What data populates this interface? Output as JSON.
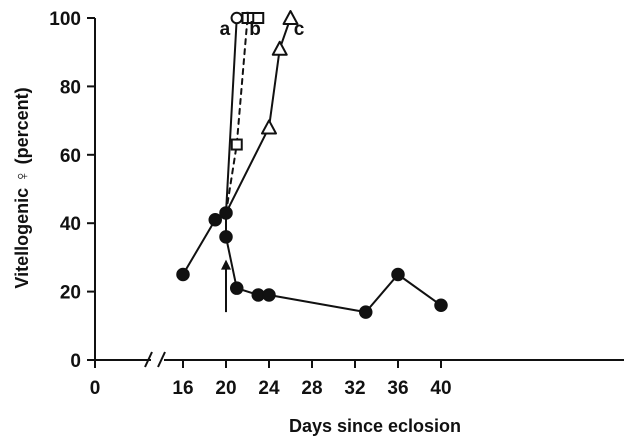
{
  "chart_data": {
    "type": "line",
    "title": "",
    "xlabel": "Days since eclosion",
    "ylabel": "Vitellogenic ♀ (percent)",
    "x_ticks": [
      0,
      16,
      20,
      24,
      28,
      32,
      36,
      40
    ],
    "y_ticks": [
      0,
      20,
      40,
      60,
      80,
      100
    ],
    "xlim": [
      0,
      41
    ],
    "ylim": [
      0,
      100
    ],
    "x_axis_break": true,
    "grid": false,
    "legend": "none",
    "arrow_annotation": {
      "x": 20,
      "y_from": 14,
      "y_to": 27
    },
    "series": [
      {
        "name": "",
        "marker": "filled-circle",
        "line_style": "solid",
        "points": [
          {
            "x": 16,
            "y": 25
          },
          {
            "x": 19,
            "y": 41
          },
          {
            "x": 20,
            "y": 43
          },
          {
            "x": 20,
            "y": 36
          },
          {
            "x": 21,
            "y": 21
          },
          {
            "x": 23,
            "y": 19
          },
          {
            "x": 24,
            "y": 19
          },
          {
            "x": 33,
            "y": 14
          },
          {
            "x": 36,
            "y": 25
          },
          {
            "x": 40,
            "y": 16
          }
        ]
      },
      {
        "name": "a",
        "marker": "open-circle",
        "line_style": "solid",
        "points": [
          {
            "x": 20,
            "y": 43
          },
          {
            "x": 21,
            "y": 100
          },
          {
            "x": 22,
            "y": 100
          }
        ]
      },
      {
        "name": "b",
        "marker": "open-square",
        "line_style": "dashed",
        "points": [
          {
            "x": 20,
            "y": 43
          },
          {
            "x": 21,
            "y": 63
          },
          {
            "x": 22,
            "y": 100
          },
          {
            "x": 22.5,
            "y": 100
          },
          {
            "x": 23,
            "y": 100
          }
        ]
      },
      {
        "name": "c",
        "marker": "open-triangle",
        "line_style": "solid",
        "points": [
          {
            "x": 20,
            "y": 43
          },
          {
            "x": 24,
            "y": 68
          },
          {
            "x": 25,
            "y": 91
          },
          {
            "x": 26,
            "y": 100
          }
        ]
      }
    ],
    "series_labels": [
      {
        "text": "a",
        "x": 19.9,
        "y": 95
      },
      {
        "text": "b",
        "x": 22.7,
        "y": 95
      },
      {
        "text": "c",
        "x": 26.8,
        "y": 95
      }
    ]
  }
}
